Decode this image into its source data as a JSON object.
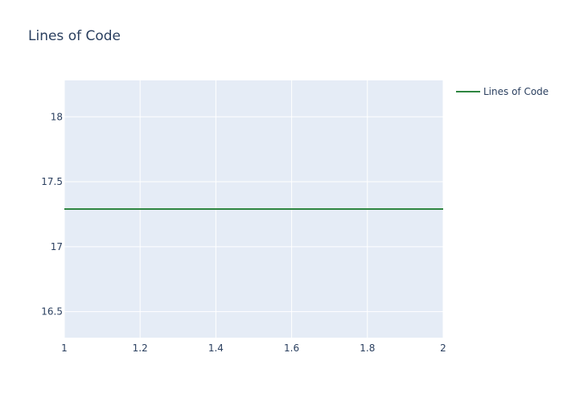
{
  "chart_data": {
    "type": "line",
    "title": "Lines of Code",
    "xlabel": "",
    "ylabel": "",
    "xlim": [
      1,
      2
    ],
    "ylim": [
      16.3,
      18.28
    ],
    "x_ticks": [
      1,
      1.2,
      1.4,
      1.6,
      1.8,
      2
    ],
    "x_tick_labels": [
      "1",
      "1.2",
      "1.4",
      "1.6",
      "1.8",
      "2"
    ],
    "y_ticks": [
      16.5,
      17,
      17.5,
      18
    ],
    "y_tick_labels": [
      "16.5",
      "17",
      "17.5",
      "18"
    ],
    "grid": true,
    "legend_position": "top-right",
    "plot_background": "#e5ecf6",
    "series": [
      {
        "name": "Lines of Code",
        "color": "#2e8540",
        "x": [
          1,
          2
        ],
        "y": [
          17.29,
          17.29
        ]
      }
    ]
  }
}
